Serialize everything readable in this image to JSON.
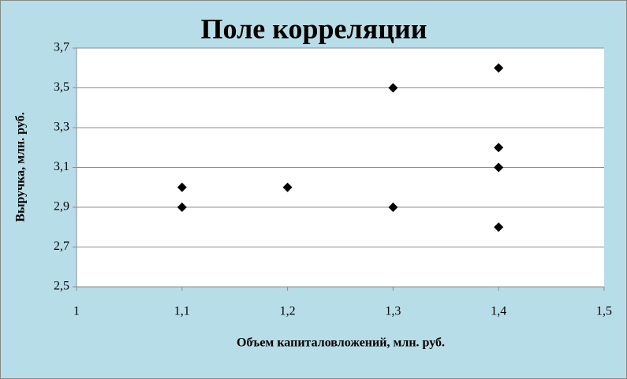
{
  "chart_data": {
    "type": "scatter",
    "title": "Поле корреляции",
    "x_label": "Объем капиталовложений, млн. руб.",
    "y_label": "Выручка, млн. руб.",
    "color": "#000000",
    "grid": true,
    "x": [
      1.1,
      1.1,
      1.2,
      1.3,
      1.3,
      1.4,
      1.4,
      1.4,
      1.4
    ],
    "values": [
      3.0,
      2.9,
      3.0,
      3.5,
      2.9,
      3.6,
      3.2,
      3.1,
      2.8
    ],
    "xlim": [
      1,
      1.5
    ],
    "xticks": [
      1,
      {
        "value": 1.1,
        "label": "1,1"
      },
      {
        "value": 1.2,
        "label": "1,2"
      },
      {
        "value": 1.3,
        "label": "1,3"
      },
      {
        "value": 1.4,
        "label": "1,4"
      },
      {
        "value": 1.5,
        "label": "1,5"
      }
    ],
    "ylim": [
      2.5,
      3.7
    ],
    "yticks": [
      {
        "value": 2.5,
        "label": "2,5"
      },
      {
        "value": 2.7,
        "label": "2,7"
      },
      {
        "value": 2.9,
        "label": "2,9"
      },
      {
        "value": 3.1,
        "label": "3,1"
      },
      {
        "value": 3.3,
        "label": "3,3"
      },
      {
        "value": 3.5,
        "label": "3,5"
      },
      {
        "value": 3.7,
        "label": "3,7"
      }
    ]
  }
}
